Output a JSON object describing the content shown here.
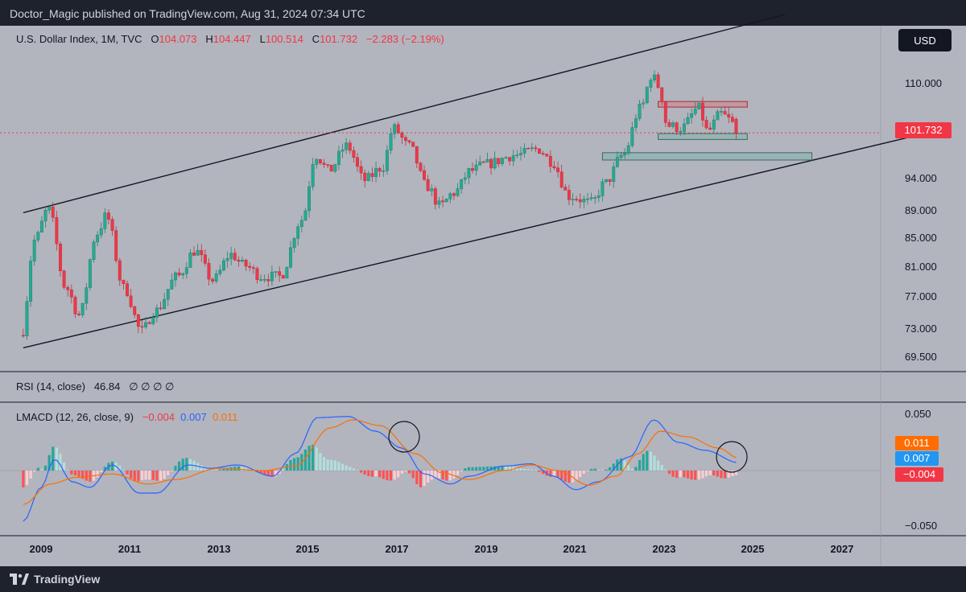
{
  "header": {
    "published": "Doctor_Magic published on TradingView.com, Aug 31, 2024 07:34 UTC"
  },
  "footer": {
    "brand": "TradingView"
  },
  "main_pane": {
    "symbol": "U.S. Dollar Index, 1M, TVC",
    "o_label": "O",
    "o_value": "104.073",
    "h_label": "H",
    "h_value": "104.447",
    "l_label": "L",
    "l_value": "100.514",
    "c_label": "C",
    "c_value": "101.732",
    "change": "−2.283 (−2.19%)",
    "currency_button": "USD",
    "last_price_label": "101.732",
    "y_ticks": [
      "110.000",
      "94.000",
      "89.000",
      "85.000",
      "81.000",
      "77.000",
      "73.000",
      "69.500"
    ]
  },
  "rsi_pane": {
    "label": "RSI (14, close)",
    "value": "46.84",
    "na": "∅ ∅ ∅ ∅"
  },
  "macd_pane": {
    "label": "LMACD (12, 26, close, 9)",
    "hist_value": "−0.004",
    "macd_value": "0.007",
    "signal_value": "0.011",
    "y_ticks": [
      "0.050",
      "−0.050"
    ],
    "badges": [
      "0.011",
      "0.007",
      "−0.004"
    ]
  },
  "x_axis": {
    "ticks": [
      "2009",
      "2011",
      "2013",
      "2015",
      "2017",
      "2019",
      "2021",
      "2023",
      "2025",
      "2027"
    ]
  },
  "colors": {
    "up": "#22ab94",
    "down": "#f23645",
    "macd": "#2962ff",
    "signal": "#ff6d00",
    "hist_up_strong": "#26a69a",
    "hist_up_weak": "#b2dfdb",
    "hist_down_strong": "#ff5252",
    "hist_down_weak": "#ffcdd2"
  },
  "chart_data": {
    "type": "candlestick",
    "title": "U.S. Dollar Index, 1M, TVC",
    "y_scale": "log",
    "ylim": [
      67.5,
      121
    ],
    "x_range": [
      2008.6,
      2028.6
    ],
    "ohlc_year_anchors": [
      [
        2008.6,
        72.5
      ],
      [
        2008.9,
        85.0
      ],
      [
        2009.2,
        89.5
      ],
      [
        2009.6,
        78.5
      ],
      [
        2009.9,
        75.0
      ],
      [
        2010.3,
        86.0
      ],
      [
        2010.5,
        88.5
      ],
      [
        2010.9,
        78.5
      ],
      [
        2011.3,
        73.0
      ],
      [
        2011.6,
        75.5
      ],
      [
        2012.1,
        80.0
      ],
      [
        2012.5,
        83.5
      ],
      [
        2012.9,
        79.5
      ],
      [
        2013.3,
        83.0
      ],
      [
        2013.6,
        81.5
      ],
      [
        2014.0,
        80.0
      ],
      [
        2014.4,
        80.0
      ],
      [
        2014.9,
        88.0
      ],
      [
        2015.2,
        98.0
      ],
      [
        2015.5,
        95.5
      ],
      [
        2015.9,
        99.5
      ],
      [
        2016.3,
        94.0
      ],
      [
        2016.7,
        96.0
      ],
      [
        2016.95,
        102.5
      ],
      [
        2017.3,
        99.5
      ],
      [
        2017.7,
        93.0
      ],
      [
        2018.0,
        90.0
      ],
      [
        2018.3,
        92.0
      ],
      [
        2018.7,
        95.5
      ],
      [
        2019.0,
        96.5
      ],
      [
        2019.7,
        98.0
      ],
      [
        2020.2,
        99.0
      ],
      [
        2020.5,
        97.0
      ],
      [
        2020.9,
        91.5
      ],
      [
        2021.4,
        90.5
      ],
      [
        2021.7,
        93.5
      ],
      [
        2022.1,
        98.0
      ],
      [
        2022.5,
        106.0
      ],
      [
        2022.75,
        112.0
      ],
      [
        2022.9,
        110.0
      ],
      [
        2023.1,
        103.0
      ],
      [
        2023.4,
        102.5
      ],
      [
        2023.8,
        106.0
      ],
      [
        2024.0,
        102.0
      ],
      [
        2024.3,
        105.0
      ],
      [
        2024.5,
        104.0
      ],
      [
        2024.66,
        101.7
      ]
    ],
    "last_bar": {
      "open": 104.073,
      "high": 104.447,
      "low": 100.514,
      "close": 101.732
    },
    "channel": {
      "upper": {
        "start": [
          2008.6,
          89.0
        ],
        "end": [
          2025.7,
          124.0
        ]
      },
      "lower": {
        "start": [
          2008.6,
          71.0
        ],
        "end": [
          2028.5,
          101.0
        ]
      }
    },
    "zones": [
      {
        "type": "resistance",
        "x": [
          2022.85,
          2024.85
        ],
        "y": [
          106.2,
          107.2
        ]
      },
      {
        "type": "support",
        "x": [
          2022.85,
          2024.85
        ],
        "y": [
          100.6,
          101.6
        ]
      },
      {
        "type": "support",
        "x": [
          2021.6,
          2026.3
        ],
        "y": [
          97.2,
          98.4
        ]
      }
    ],
    "macd": {
      "ylim": [
        -0.062,
        0.062
      ],
      "macd_anchors": [
        [
          2008.6,
          -0.045
        ],
        [
          2009.0,
          -0.015
        ],
        [
          2009.3,
          0.01
        ],
        [
          2009.7,
          -0.01
        ],
        [
          2010.1,
          -0.015
        ],
        [
          2010.6,
          0.005
        ],
        [
          2011.2,
          -0.02
        ],
        [
          2011.6,
          -0.02
        ],
        [
          2012.3,
          0.005
        ],
        [
          2012.8,
          0.002
        ],
        [
          2013.4,
          0.005
        ],
        [
          2014.2,
          -0.005
        ],
        [
          2014.7,
          0.015
        ],
        [
          2015.2,
          0.047
        ],
        [
          2015.9,
          0.048
        ],
        [
          2016.5,
          0.035
        ],
        [
          2017.1,
          0.02
        ],
        [
          2017.6,
          -0.003
        ],
        [
          2018.2,
          -0.012
        ],
        [
          2018.6,
          -0.005
        ],
        [
          2019.4,
          0.004
        ],
        [
          2020.0,
          0.006
        ],
        [
          2020.5,
          -0.005
        ],
        [
          2021.0,
          -0.017
        ],
        [
          2021.5,
          -0.01
        ],
        [
          2022.2,
          0.012
        ],
        [
          2022.75,
          0.045
        ],
        [
          2023.3,
          0.025
        ],
        [
          2023.9,
          0.018
        ],
        [
          2024.66,
          0.007
        ]
      ],
      "signal_anchors": [
        [
          2008.6,
          -0.03
        ],
        [
          2009.2,
          -0.012
        ],
        [
          2009.8,
          -0.006
        ],
        [
          2010.6,
          -0.003
        ],
        [
          2011.4,
          -0.012
        ],
        [
          2012.0,
          -0.008
        ],
        [
          2013.0,
          0.002
        ],
        [
          2014.0,
          0.0
        ],
        [
          2014.7,
          0.004
        ],
        [
          2015.5,
          0.038
        ],
        [
          2016.0,
          0.045
        ],
        [
          2016.6,
          0.04
        ],
        [
          2017.4,
          0.015
        ],
        [
          2018.0,
          -0.002
        ],
        [
          2018.6,
          -0.008
        ],
        [
          2019.4,
          0.0
        ],
        [
          2020.0,
          0.005
        ],
        [
          2020.6,
          0.0
        ],
        [
          2021.3,
          -0.013
        ],
        [
          2021.9,
          -0.005
        ],
        [
          2022.4,
          0.015
        ],
        [
          2022.9,
          0.035
        ],
        [
          2023.5,
          0.03
        ],
        [
          2024.2,
          0.02
        ],
        [
          2024.66,
          0.011
        ]
      ],
      "histogram_last": -0.004
    }
  }
}
